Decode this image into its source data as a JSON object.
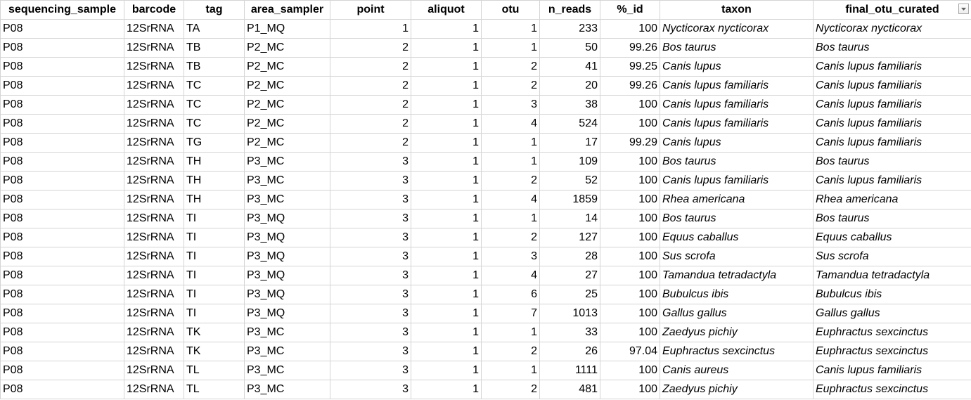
{
  "sheet": {
    "columns": [
      "sequencing_sample",
      "barcode",
      "tag",
      "area_sampler",
      "point",
      "aliquot",
      "otu",
      "n_reads",
      "%_id",
      "taxon",
      "final_otu_curated"
    ],
    "rows": [
      [
        "P08",
        "12SrRNA",
        "TA",
        "P1_MQ",
        "1",
        "1",
        "1",
        "233",
        "100",
        "Nycticorax nycticorax",
        "Nycticorax nycticorax"
      ],
      [
        "P08",
        "12SrRNA",
        "TB",
        "P2_MC",
        "2",
        "1",
        "1",
        "50",
        "99.26",
        "Bos taurus",
        "Bos taurus"
      ],
      [
        "P08",
        "12SrRNA",
        "TB",
        "P2_MC",
        "2",
        "1",
        "2",
        "41",
        "99.25",
        "Canis lupus",
        "Canis lupus familiaris"
      ],
      [
        "P08",
        "12SrRNA",
        "TC",
        "P2_MC",
        "2",
        "1",
        "2",
        "20",
        "99.26",
        "Canis lupus familiaris",
        "Canis lupus familiaris"
      ],
      [
        "P08",
        "12SrRNA",
        "TC",
        "P2_MC",
        "2",
        "1",
        "3",
        "38",
        "100",
        "Canis lupus familiaris",
        "Canis lupus familiaris"
      ],
      [
        "P08",
        "12SrRNA",
        "TC",
        "P2_MC",
        "2",
        "1",
        "4",
        "524",
        "100",
        "Canis lupus familiaris",
        "Canis lupus familiaris"
      ],
      [
        "P08",
        "12SrRNA",
        "TG",
        "P2_MC",
        "2",
        "1",
        "1",
        "17",
        "99.29",
        "Canis lupus",
        "Canis lupus familiaris"
      ],
      [
        "P08",
        "12SrRNA",
        "TH",
        "P3_MC",
        "3",
        "1",
        "1",
        "109",
        "100",
        "Bos taurus",
        "Bos taurus"
      ],
      [
        "P08",
        "12SrRNA",
        "TH",
        "P3_MC",
        "3",
        "1",
        "2",
        "52",
        "100",
        "Canis lupus familiaris",
        "Canis lupus familiaris"
      ],
      [
        "P08",
        "12SrRNA",
        "TH",
        "P3_MC",
        "3",
        "1",
        "4",
        "1859",
        "100",
        "Rhea americana",
        "Rhea americana"
      ],
      [
        "P08",
        "12SrRNA",
        "TI",
        "P3_MQ",
        "3",
        "1",
        "1",
        "14",
        "100",
        "Bos taurus",
        "Bos taurus"
      ],
      [
        "P08",
        "12SrRNA",
        "TI",
        "P3_MQ",
        "3",
        "1",
        "2",
        "127",
        "100",
        "Equus caballus",
        "Equus caballus"
      ],
      [
        "P08",
        "12SrRNA",
        "TI",
        "P3_MQ",
        "3",
        "1",
        "3",
        "28",
        "100",
        "Sus scrofa",
        "Sus scrofa"
      ],
      [
        "P08",
        "12SrRNA",
        "TI",
        "P3_MQ",
        "3",
        "1",
        "4",
        "27",
        "100",
        "Tamandua tetradactyla",
        "Tamandua tetradactyla"
      ],
      [
        "P08",
        "12SrRNA",
        "TI",
        "P3_MQ",
        "3",
        "1",
        "6",
        "25",
        "100",
        "Bubulcus ibis",
        "Bubulcus ibis"
      ],
      [
        "P08",
        "12SrRNA",
        "TI",
        "P3_MQ",
        "3",
        "1",
        "7",
        "1013",
        "100",
        "Gallus gallus",
        "Gallus gallus"
      ],
      [
        "P08",
        "12SrRNA",
        "TK",
        "P3_MC",
        "3",
        "1",
        "1",
        "33",
        "100",
        "Zaedyus pichiy",
        "Euphractus sexcinctus"
      ],
      [
        "P08",
        "12SrRNA",
        "TK",
        "P3_MC",
        "3",
        "1",
        "2",
        "26",
        "97.04",
        "Euphractus sexcinctus",
        "Euphractus sexcinctus"
      ],
      [
        "P08",
        "12SrRNA",
        "TL",
        "P3_MC",
        "3",
        "1",
        "1",
        "1111",
        "100",
        "Canis aureus",
        "Canis lupus familiaris"
      ],
      [
        "P08",
        "12SrRNA",
        "TL",
        "P3_MC",
        "3",
        "1",
        "2",
        "481",
        "100",
        "Zaedyus pichiy",
        "Euphractus sexcinctus"
      ]
    ]
  },
  "filter_icon": "dropdown-arrow-icon"
}
